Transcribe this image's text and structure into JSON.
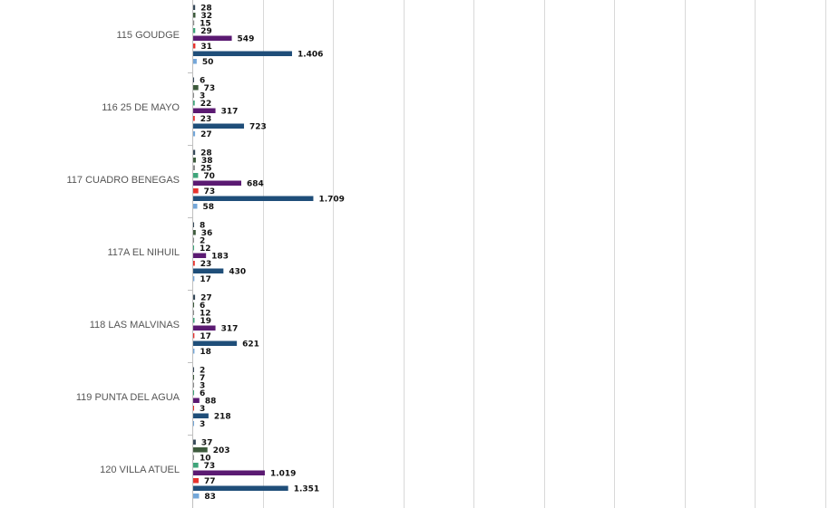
{
  "chart_data": {
    "type": "bar",
    "orientation": "horizontal",
    "grid": true,
    "colors": [
      "#37495a",
      "#3d5a3c",
      "#8c8c8c",
      "#3fa57a",
      "#5b1a72",
      "#e8332d",
      "#1f4e79",
      "#74a7d9"
    ],
    "categories": [
      {
        "name": "115 GOUDGE",
        "values": [
          28,
          32,
          15,
          29,
          549,
          31,
          1406,
          50
        ],
        "labels": [
          "28",
          "32",
          "15",
          "29",
          "549",
          "31",
          "1.406",
          "50"
        ]
      },
      {
        "name": "116 25 DE MAYO",
        "values": [
          6,
          73,
          3,
          22,
          317,
          23,
          723,
          27
        ],
        "labels": [
          "6",
          "73",
          "3",
          "22",
          "317",
          "23",
          "723",
          "27"
        ]
      },
      {
        "name": "117 CUADRO BENEGAS",
        "values": [
          28,
          38,
          25,
          70,
          684,
          73,
          1709,
          58
        ],
        "labels": [
          "28",
          "38",
          "25",
          "70",
          "684",
          "73",
          "1.709",
          "58"
        ]
      },
      {
        "name": "117A EL NIHUIL",
        "values": [
          8,
          36,
          2,
          12,
          183,
          23,
          430,
          17
        ],
        "labels": [
          "8",
          "36",
          "2",
          "12",
          "183",
          "23",
          "430",
          "17"
        ]
      },
      {
        "name": "118 LAS MALVINAS",
        "values": [
          27,
          6,
          12,
          19,
          317,
          17,
          621,
          18
        ],
        "labels": [
          "27",
          "6",
          "12",
          "19",
          "317",
          "17",
          "621",
          "18"
        ]
      },
      {
        "name": "119 PUNTA DEL AGUA",
        "values": [
          2,
          7,
          3,
          6,
          88,
          3,
          218,
          3
        ],
        "labels": [
          "2",
          "7",
          "3",
          "6",
          "88",
          "3",
          "218",
          "3"
        ]
      },
      {
        "name": "120 VILLA ATUEL",
        "values": [
          37,
          203,
          10,
          73,
          1019,
          77,
          1351,
          83
        ],
        "labels": [
          "37",
          "203",
          "10",
          "73",
          "1.019",
          "77",
          "1.351",
          "83"
        ]
      }
    ],
    "xlim": [
      0,
      9000
    ],
    "grid_step": 1000
  }
}
